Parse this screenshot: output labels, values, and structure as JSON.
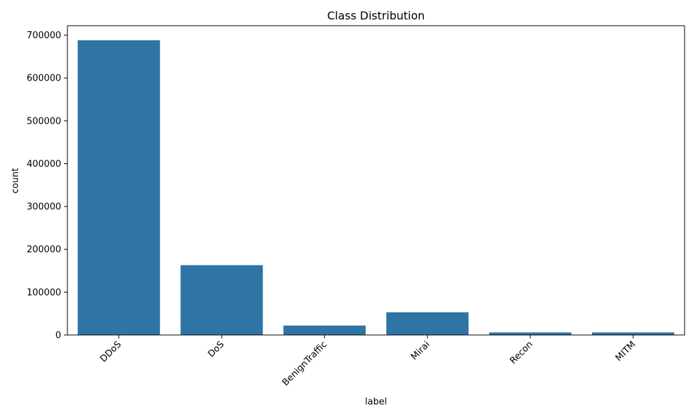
{
  "chart_data": {
    "type": "bar",
    "title": "Class Distribution",
    "xlabel": "label",
    "ylabel": "count",
    "categories": [
      "DDoS",
      "DoS",
      "BenignTraffic",
      "Mirai",
      "Recon",
      "MITM"
    ],
    "values": [
      688000,
      163000,
      22000,
      53000,
      6000,
      6000
    ],
    "ylim": [
      0,
      722000
    ],
    "yticks": [
      0,
      100000,
      200000,
      300000,
      400000,
      500000,
      600000,
      700000
    ],
    "ytick_labels": [
      "0",
      "100000",
      "200000",
      "300000",
      "400000",
      "500000",
      "600000",
      "700000"
    ],
    "bar_color": "#2e75a6",
    "grid": false,
    "legend": "none",
    "xtick_rotation": 45
  }
}
